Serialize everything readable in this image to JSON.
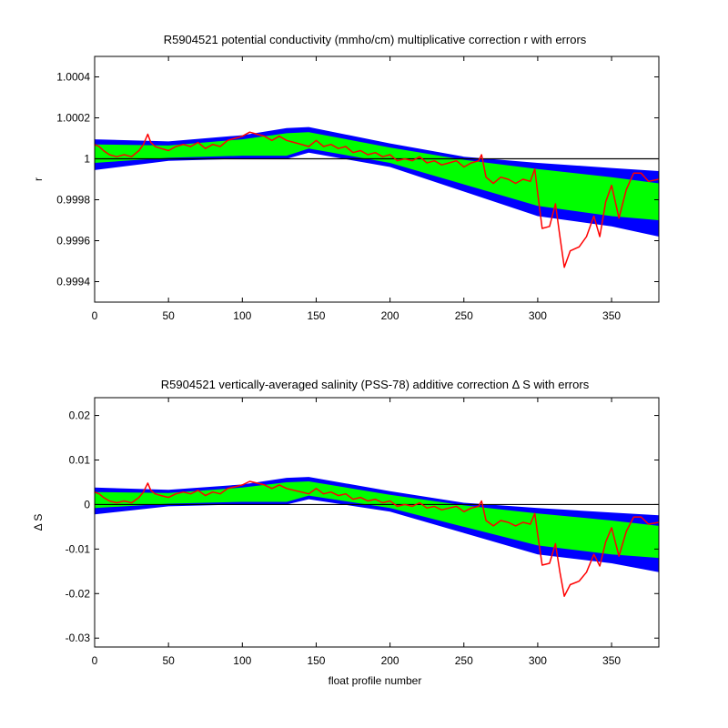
{
  "chart_data": [
    {
      "type": "line",
      "title": "R5904521 potential conductivity (mmho/cm) multiplicative correction r with errors",
      "xlabel": "",
      "ylabel": "r",
      "xlim": [
        0,
        382
      ],
      "ylim": [
        0.9993,
        1.0005
      ],
      "xticks": [
        0,
        50,
        100,
        150,
        200,
        250,
        300,
        350
      ],
      "xtick_labels": [
        "0",
        "50",
        "100",
        "150",
        "200",
        "250",
        "300",
        "350"
      ],
      "yticks": [
        0.9994,
        0.9996,
        0.9998,
        1.0,
        1.0002,
        1.0004
      ],
      "ytick_labels": [
        "0.9994",
        "0.9996",
        "0.9998",
        "1",
        "1.0002",
        "1.0004"
      ],
      "reference_line": 1.0,
      "grid": false,
      "colors": {
        "outer_band": "#0000ff",
        "inner_band": "#00ff00",
        "series": "#ff0000",
        "reference": "#000000"
      },
      "outer_band": {
        "x": [
          0,
          50,
          100,
          130,
          145,
          200,
          250,
          300,
          350,
          382
        ],
        "upper": [
          1.000095,
          1.000085,
          1.000115,
          1.00015,
          1.000155,
          1.000075,
          1.00001,
          0.99998,
          0.999955,
          0.99994
        ],
        "lower": [
          0.999945,
          0.99999,
          1.0,
          1.0,
          1.00003,
          0.99996,
          0.99984,
          0.99972,
          0.99967,
          0.99962
        ]
      },
      "inner_band": {
        "x": [
          0,
          50,
          100,
          130,
          145,
          200,
          250,
          300,
          350,
          382
        ],
        "upper": [
          1.00007,
          1.000065,
          1.000095,
          1.000125,
          1.00013,
          1.000055,
          0.999995,
          0.99995,
          0.99991,
          0.99988
        ],
        "lower": [
          0.99998,
          1.000005,
          1.000015,
          1.000015,
          1.00005,
          0.99998,
          0.999875,
          0.99977,
          0.99972,
          0.9997
        ]
      },
      "series": [
        {
          "x": [
            0,
            3,
            6,
            10,
            15,
            20,
            25,
            30,
            33,
            36,
            38,
            41,
            45,
            50,
            55,
            60,
            65,
            70,
            75,
            80,
            85,
            90,
            95,
            100,
            105,
            110,
            115,
            120,
            125,
            130,
            135,
            140,
            145,
            150,
            155,
            160,
            165,
            170,
            175,
            180,
            185,
            190,
            195,
            200,
            205,
            210,
            215,
            220,
            225,
            230,
            235,
            240,
            245,
            250,
            255,
            260,
            262,
            265,
            270,
            275,
            280,
            285,
            290,
            295,
            298,
            300,
            303,
            308,
            312,
            315,
            318,
            322,
            328,
            333,
            338,
            342,
            346,
            350,
            355,
            360,
            365,
            370,
            375,
            382
          ],
          "y": [
            1.00007,
            1.00006,
            1.00004,
            1.00002,
            1.00001,
            1.00002,
            1.00001,
            1.00004,
            1.00007,
            1.00012,
            1.00008,
            1.00006,
            1.00005,
            1.00004,
            1.00006,
            1.00007,
            1.00006,
            1.00008,
            1.00005,
            1.00007,
            1.00006,
            1.00009,
            1.0001,
            1.00011,
            1.00013,
            1.00012,
            1.00011,
            1.00009,
            1.00011,
            1.00009,
            1.00008,
            1.00007,
            1.00006,
            1.00009,
            1.00006,
            1.00007,
            1.00005,
            1.00006,
            1.00003,
            1.00004,
            1.00002,
            1.00003,
            1.00001,
            1.00002,
            0.99999,
            1.0,
            0.99999,
            1.00001,
            0.99998,
            0.99999,
            0.99997,
            0.99998,
            0.99999,
            0.99996,
            0.99998,
            0.99999,
            1.00002,
            0.99991,
            0.99988,
            0.99991,
            0.9999,
            0.99988,
            0.9999,
            0.99989,
            0.99995,
            0.99983,
            0.99966,
            0.99967,
            0.99978,
            0.99962,
            0.99947,
            0.99955,
            0.99957,
            0.99962,
            0.99972,
            0.99962,
            0.99979,
            0.99987,
            0.99971,
            0.99985,
            0.99993,
            0.99993,
            0.99989,
            0.9999
          ]
        }
      ]
    },
    {
      "type": "line",
      "title": "R5904521 vertically-averaged salinity (PSS-78) additive correction Δ S with errors",
      "xlabel": "float profile number",
      "ylabel": "Δ S",
      "xlim": [
        0,
        382
      ],
      "ylim": [
        -0.032,
        0.024
      ],
      "xticks": [
        0,
        50,
        100,
        150,
        200,
        250,
        300,
        350
      ],
      "xtick_labels": [
        "0",
        "50",
        "100",
        "150",
        "200",
        "250",
        "300",
        "350"
      ],
      "yticks": [
        -0.03,
        -0.02,
        -0.01,
        0,
        0.01,
        0.02
      ],
      "ytick_labels": [
        "-0.03",
        "-0.02",
        "-0.01",
        "0",
        "0.01",
        "0.02"
      ],
      "reference_line": 0,
      "grid": false,
      "colors": {
        "outer_band": "#0000ff",
        "inner_band": "#00ff00",
        "series": "#ff0000",
        "reference": "#000000"
      },
      "outer_band": {
        "x": [
          0,
          50,
          100,
          130,
          145,
          200,
          250,
          300,
          350,
          382
        ],
        "upper": [
          0.0038,
          0.0033,
          0.0045,
          0.006,
          0.0062,
          0.003,
          0.0004,
          -0.0008,
          -0.0018,
          -0.0024
        ],
        "lower": [
          -0.0022,
          -0.0004,
          0.0,
          0.0,
          0.0012,
          -0.0016,
          -0.0064,
          -0.0112,
          -0.0132,
          -0.0152
        ]
      },
      "inner_band": {
        "x": [
          0,
          50,
          100,
          130,
          145,
          200,
          250,
          300,
          350,
          382
        ],
        "upper": [
          0.0028,
          0.0026,
          0.0038,
          0.005,
          0.0052,
          0.0022,
          -0.0002,
          -0.002,
          -0.0036,
          -0.0048
        ],
        "lower": [
          -0.0008,
          0.0002,
          0.0006,
          0.0006,
          0.002,
          -0.0008,
          -0.005,
          -0.0092,
          -0.0112,
          -0.012
        ]
      },
      "series": [
        {
          "x": [
            0,
            3,
            6,
            10,
            15,
            20,
            25,
            30,
            33,
            36,
            38,
            41,
            45,
            50,
            55,
            60,
            65,
            70,
            75,
            80,
            85,
            90,
            95,
            100,
            105,
            110,
            115,
            120,
            125,
            130,
            135,
            140,
            145,
            150,
            155,
            160,
            165,
            170,
            175,
            180,
            185,
            190,
            195,
            200,
            205,
            210,
            215,
            220,
            225,
            230,
            235,
            240,
            245,
            250,
            255,
            260,
            262,
            265,
            270,
            275,
            280,
            285,
            290,
            295,
            298,
            300,
            303,
            308,
            312,
            315,
            318,
            322,
            328,
            333,
            338,
            342,
            346,
            350,
            355,
            360,
            365,
            370,
            375,
            382
          ],
          "y": [
            0.0028,
            0.0024,
            0.0016,
            0.0008,
            0.0004,
            0.0008,
            0.0004,
            0.0016,
            0.0028,
            0.0048,
            0.0032,
            0.0024,
            0.002,
            0.0016,
            0.0024,
            0.0028,
            0.0024,
            0.0032,
            0.002,
            0.0028,
            0.0024,
            0.0036,
            0.004,
            0.0044,
            0.0052,
            0.0048,
            0.0044,
            0.0036,
            0.0044,
            0.0036,
            0.0032,
            0.0028,
            0.0024,
            0.0036,
            0.0024,
            0.0028,
            0.002,
            0.0024,
            0.0012,
            0.0016,
            0.0008,
            0.0012,
            0.0004,
            0.0008,
            -0.0004,
            0.0,
            -0.0004,
            0.0004,
            -0.0008,
            -0.0004,
            -0.0012,
            -0.0008,
            -0.0004,
            -0.0016,
            -0.0008,
            -0.0004,
            0.0008,
            -0.0036,
            -0.0048,
            -0.0036,
            -0.004,
            -0.0048,
            -0.004,
            -0.0044,
            -0.002,
            -0.0068,
            -0.0136,
            -0.0132,
            -0.0088,
            -0.0152,
            -0.0206,
            -0.018,
            -0.0172,
            -0.0152,
            -0.0112,
            -0.0138,
            -0.0084,
            -0.0052,
            -0.0116,
            -0.006,
            -0.0028,
            -0.0028,
            -0.0044,
            -0.004
          ]
        }
      ]
    }
  ]
}
